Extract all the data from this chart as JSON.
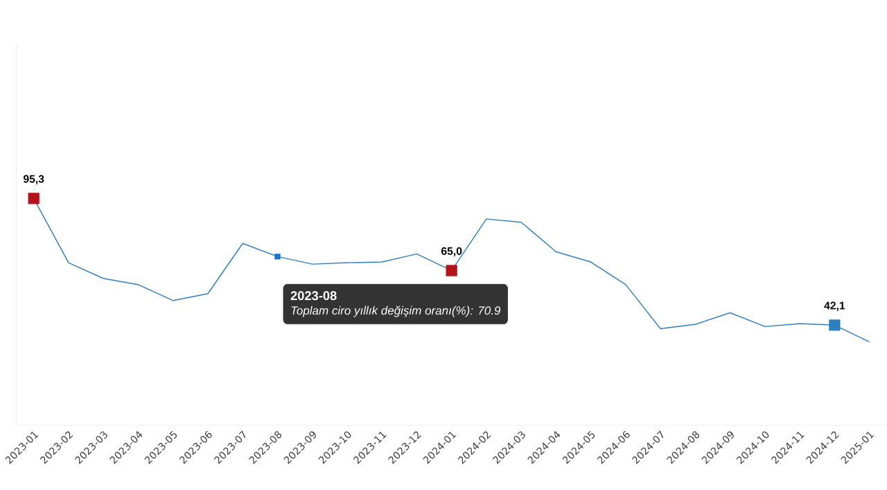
{
  "chart_data": {
    "type": "line",
    "categories": [
      "2023-01",
      "2023-02",
      "2023-03",
      "2023-04",
      "2023-05",
      "2023-06",
      "2023-07",
      "2023-08",
      "2023-09",
      "2023-10",
      "2023-11",
      "2023-12",
      "2024-01",
      "2024-02",
      "2024-03",
      "2024-04",
      "2024-05",
      "2024-06",
      "2024-07",
      "2024-08",
      "2024-09",
      "2024-10",
      "2024-11",
      "2024-12",
      "2025-01"
    ],
    "series": [
      {
        "color": "#2e7fc0",
        "values": [
          95.3,
          68.3,
          61.7,
          59.1,
          52.4,
          55.3,
          76.4,
          70.9,
          67.7,
          68.3,
          68.6,
          72.0,
          65.0,
          86.7,
          85.3,
          72.9,
          68.6,
          59.1,
          40.6,
          42.4,
          47.3,
          41.5,
          42.7,
          42.1,
          35.0
        ],
        "value_labels": [
          "95,3",
          null,
          null,
          null,
          null,
          null,
          null,
          null,
          null,
          null,
          null,
          null,
          "65,0",
          null,
          null,
          null,
          null,
          null,
          null,
          null,
          null,
          null,
          null,
          "42,1",
          null
        ],
        "colors": [
          "#b5121b",
          null,
          null,
          null,
          null,
          null,
          null,
          "#1a75cf",
          null,
          null,
          null,
          null,
          "#b5121b",
          null,
          null,
          null,
          null,
          null,
          null,
          null,
          null,
          null,
          null,
          "#2e7fbf",
          null
        ]
      }
    ],
    "annotations": [
      "2023-08",
      "Toplam ciro yıllık değişim oranı(%): 70.9"
    ],
    "ylim": [
      0,
      160
    ],
    "tick_labels": "x",
    "grid": false
  }
}
